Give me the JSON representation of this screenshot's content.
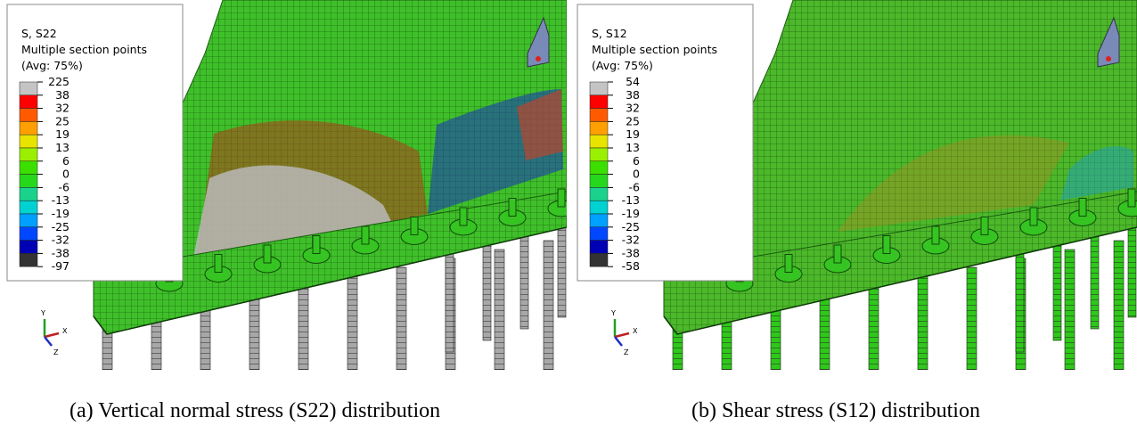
{
  "panels": [
    {
      "legend": {
        "title_lines": [
          "S, S22",
          "Multiple section points",
          "(Avg: 75%)"
        ],
        "labels": [
          225,
          38,
          32,
          25,
          19,
          13,
          6,
          0,
          -6,
          -13,
          -19,
          -25,
          -32,
          -38,
          -97
        ],
        "colors": [
          "#c4c4c4",
          "#ff0000",
          "#ff5a00",
          "#ffa000",
          "#e8e400",
          "#9af000",
          "#3ce000",
          "#26d81c",
          "#1ad28c",
          "#00d2d2",
          "#00a0ff",
          "#0048ff",
          "#0000b4",
          "#333333"
        ]
      },
      "triad": {
        "y": "Y",
        "x": "X",
        "z": "Z"
      },
      "caption": "(a) Vertical normal stress (S22) distribution"
    },
    {
      "legend": {
        "title_lines": [
          "S, S12",
          "Multiple section points",
          "(Avg: 75%)"
        ],
        "labels": [
          54,
          38,
          32,
          25,
          19,
          13,
          6,
          0,
          -6,
          -13,
          -19,
          -25,
          -32,
          -38,
          -58
        ],
        "colors": [
          "#c4c4c4",
          "#ff0000",
          "#ff5a00",
          "#ffa000",
          "#e8e400",
          "#9af000",
          "#3ce000",
          "#26d81c",
          "#1ad28c",
          "#00d2d2",
          "#00a0ff",
          "#0048ff",
          "#0000b4",
          "#333333"
        ]
      },
      "triad": {
        "y": "Y",
        "x": "X",
        "z": "Z"
      },
      "caption": "(b) Shear stress (S12) distribution"
    }
  ]
}
